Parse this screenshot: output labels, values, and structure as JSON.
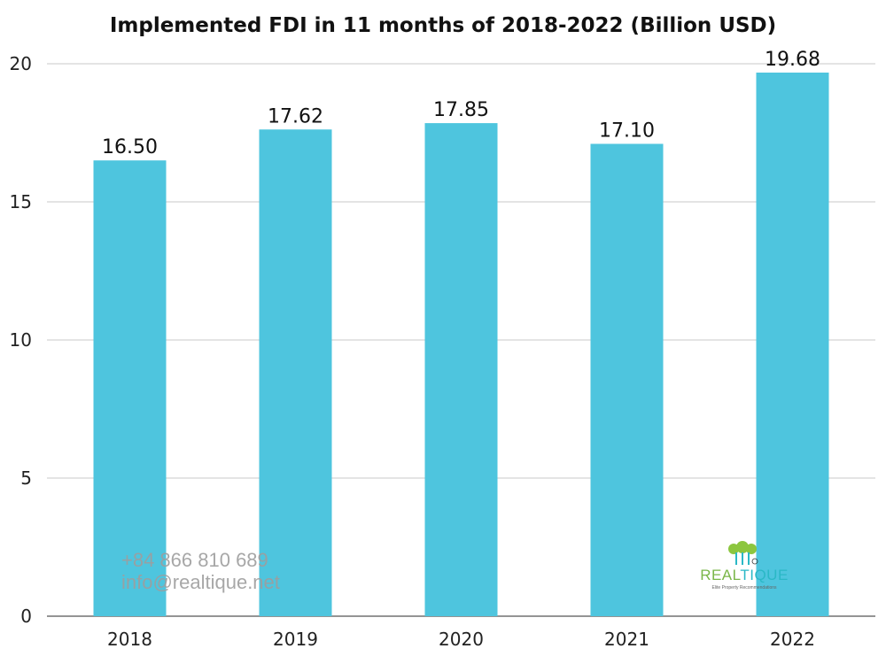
{
  "chart_data": {
    "type": "bar",
    "title": "Implemented FDI in 11 months of 2018-2022 (Billion USD)",
    "categories": [
      "2018",
      "2019",
      "2020",
      "2021",
      "2022"
    ],
    "values": [
      16.5,
      17.62,
      17.85,
      17.1,
      19.68
    ],
    "value_labels": [
      "16.50",
      "17.62",
      "17.85",
      "17.10",
      "19.68"
    ],
    "ylim": [
      0,
      20
    ],
    "yticks": [
      0,
      5,
      10,
      15,
      20
    ],
    "grid": true,
    "bar_color": "#4ec5de",
    "grid_color": "#c8c8c8"
  },
  "watermark": {
    "phone": "+84 866 810 689",
    "email": "info@realtique.net"
  },
  "logo": {
    "name_part1": "REAL",
    "name_part2": "TIQUE",
    "tagline": "Elite Property Recommendations",
    "leaf_color": "#8cc63f",
    "text_color": "#2ab8c6"
  }
}
